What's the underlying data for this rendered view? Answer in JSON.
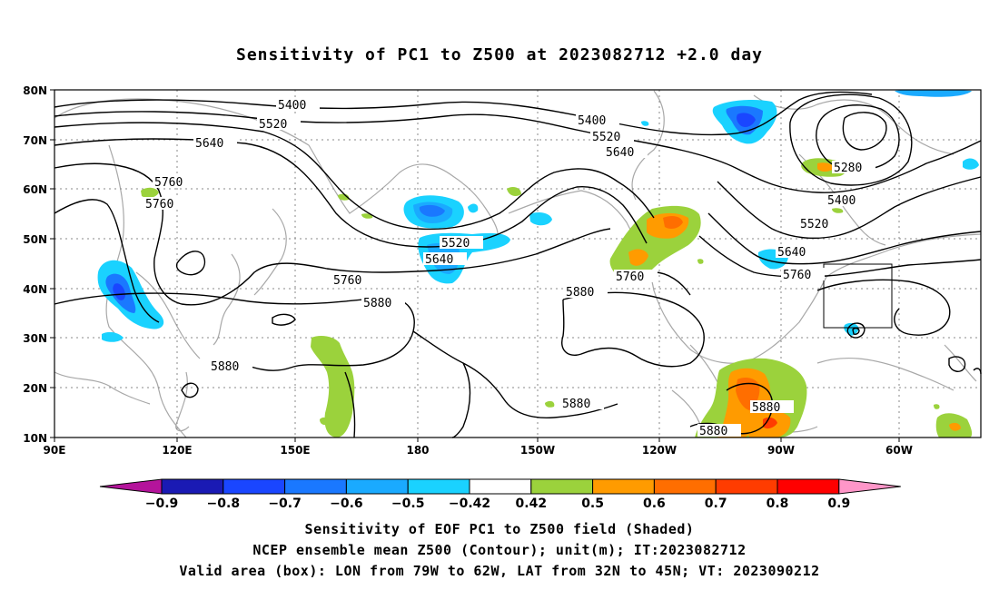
{
  "title": "Sensitivity of PC1 to Z500 at 2023082712 +2.0 day",
  "axes": {
    "lat_labels": [
      "80N",
      "70N",
      "60N",
      "50N",
      "40N",
      "30N",
      "20N",
      "10N"
    ],
    "lon_labels": [
      "90E",
      "120E",
      "150E",
      "180",
      "150W",
      "120W",
      "90W",
      "60W"
    ]
  },
  "contour_labels": [
    "5400",
    "5520",
    "5640",
    "5760",
    "5760",
    "5400",
    "5520",
    "5640",
    "5280",
    "5400",
    "5520",
    "5640",
    "5760",
    "5520",
    "5640",
    "5760",
    "5880",
    "5880",
    "5760",
    "5880",
    "5880",
    "5880",
    "5880"
  ],
  "colorbar": {
    "labels": [
      "-0.9",
      "-0.8",
      "-0.7",
      "-0.6",
      "-0.5",
      "-0.42",
      "0.42",
      "0.5",
      "0.6",
      "0.7",
      "0.8",
      "0.9"
    ],
    "colors": [
      "#b4149b",
      "#1a1ab4",
      "#1a46ff",
      "#1a78ff",
      "#1aaaff",
      "#1ad2ff",
      "#ffffff",
      "#9bd23c",
      "#ff9b00",
      "#ff6e00",
      "#ff3c00",
      "#ff0000",
      "#ff96c8"
    ]
  },
  "captions": [
    "Sensitivity of EOF PC1 to Z500 field (Shaded)",
    "NCEP ensemble mean Z500 (Contour); unit(m); IT:2023082712",
    "Valid area (box): LON from 79W to 62W, LAT from 32N to 45N; VT: 2023090212"
  ]
}
